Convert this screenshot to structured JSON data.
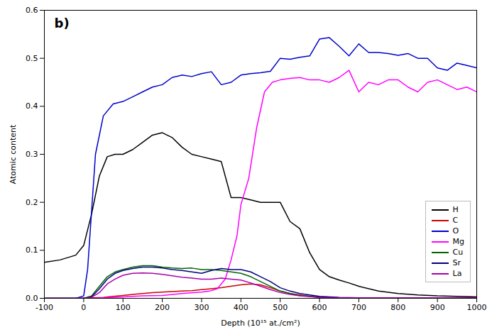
{
  "chart_data": {
    "type": "line",
    "title": "b)",
    "xlabel": "Depth (10¹⁵ at./cm²)",
    "ylabel": "Atomic content",
    "xlim": [
      -100,
      1000
    ],
    "ylim": [
      0,
      0.6
    ],
    "xticks": [
      -100,
      0,
      100,
      200,
      300,
      400,
      500,
      600,
      700,
      800,
      900,
      1000
    ],
    "yticks": [
      {
        "value": 0.0,
        "label": "0.0"
      },
      0.1,
      0.2,
      0.3,
      0.4,
      0.5,
      0.6
    ],
    "grid": false,
    "legend": "lower right",
    "series": [
      {
        "name": "H",
        "color": "#000000",
        "x": [
          -100,
          -60,
          -20,
          0,
          20,
          40,
          60,
          80,
          100,
          125,
          150,
          175,
          200,
          225,
          250,
          275,
          300,
          325,
          350,
          375,
          400,
          425,
          450,
          475,
          500,
          525,
          550,
          575,
          600,
          625,
          650,
          675,
          700,
          750,
          800,
          850,
          900,
          950,
          1000
        ],
        "values": [
          0.075,
          0.08,
          0.09,
          0.11,
          0.175,
          0.255,
          0.295,
          0.3,
          0.3,
          0.31,
          0.325,
          0.34,
          0.345,
          0.335,
          0.315,
          0.3,
          0.295,
          0.29,
          0.285,
          0.21,
          0.21,
          0.205,
          0.2,
          0.2,
          0.2,
          0.16,
          0.145,
          0.095,
          0.06,
          0.045,
          0.038,
          0.032,
          0.025,
          0.015,
          0.01,
          0.007,
          0.005,
          0.004,
          0.003
        ]
      },
      {
        "name": "C",
        "color": "#cc0000",
        "x": [
          -100,
          -50,
          0,
          25,
          50,
          75,
          100,
          125,
          150,
          175,
          200,
          225,
          250,
          275,
          300,
          325,
          350,
          375,
          400,
          425,
          450,
          475,
          500,
          525,
          550,
          575,
          600,
          650,
          700,
          750,
          800,
          900,
          1000
        ],
        "values": [
          0.0,
          0.0,
          0.0,
          0.001,
          0.002,
          0.004,
          0.006,
          0.008,
          0.01,
          0.012,
          0.013,
          0.014,
          0.015,
          0.016,
          0.018,
          0.02,
          0.022,
          0.025,
          0.028,
          0.03,
          0.028,
          0.022,
          0.015,
          0.01,
          0.007,
          0.004,
          0.002,
          0.001,
          0.001,
          0.001,
          0.001,
          0.001,
          0.001
        ]
      },
      {
        "name": "O",
        "color": "#0000cc",
        "x": [
          -100,
          -50,
          -20,
          0,
          10,
          20,
          30,
          50,
          75,
          100,
          125,
          150,
          175,
          200,
          225,
          250,
          275,
          300,
          325,
          350,
          375,
          400,
          425,
          450,
          475,
          500,
          525,
          550,
          575,
          600,
          625,
          650,
          675,
          700,
          725,
          750,
          775,
          800,
          825,
          850,
          875,
          900,
          925,
          950,
          975,
          1000
        ],
        "values": [
          0.0,
          0.0,
          0.0,
          0.005,
          0.06,
          0.18,
          0.3,
          0.38,
          0.405,
          0.41,
          0.42,
          0.43,
          0.44,
          0.445,
          0.46,
          0.465,
          0.462,
          0.468,
          0.472,
          0.445,
          0.45,
          0.465,
          0.468,
          0.47,
          0.473,
          0.5,
          0.498,
          0.502,
          0.505,
          0.54,
          0.543,
          0.525,
          0.505,
          0.53,
          0.512,
          0.512,
          0.51,
          0.506,
          0.51,
          0.5,
          0.5,
          0.48,
          0.475,
          0.49,
          0.485,
          0.48
        ]
      },
      {
        "name": "Mg",
        "color": "#ff00ff",
        "x": [
          -100,
          -50,
          0,
          25,
          50,
          75,
          100,
          150,
          200,
          250,
          280,
          300,
          320,
          340,
          360,
          375,
          390,
          400,
          420,
          440,
          460,
          480,
          500,
          525,
          550,
          575,
          600,
          625,
          650,
          675,
          700,
          725,
          750,
          775,
          800,
          825,
          850,
          875,
          900,
          925,
          950,
          975,
          1000
        ],
        "values": [
          0.0,
          0.0,
          0.0,
          0.0,
          0.001,
          0.002,
          0.003,
          0.005,
          0.006,
          0.01,
          0.012,
          0.013,
          0.015,
          0.02,
          0.04,
          0.08,
          0.13,
          0.195,
          0.25,
          0.355,
          0.43,
          0.45,
          0.455,
          0.458,
          0.46,
          0.455,
          0.455,
          0.45,
          0.46,
          0.475,
          0.43,
          0.45,
          0.445,
          0.455,
          0.455,
          0.44,
          0.43,
          0.45,
          0.455,
          0.445,
          0.435,
          0.44,
          0.43
        ]
      },
      {
        "name": "Cu",
        "color": "#006400",
        "x": [
          -100,
          -50,
          0,
          20,
          40,
          60,
          80,
          100,
          125,
          150,
          175,
          200,
          225,
          250,
          275,
          300,
          325,
          350,
          375,
          400,
          425,
          450,
          475,
          500,
          525,
          550,
          600,
          650,
          700,
          750,
          800,
          900,
          1000
        ],
        "values": [
          0.0,
          0.0,
          0.0,
          0.005,
          0.025,
          0.045,
          0.055,
          0.06,
          0.065,
          0.068,
          0.068,
          0.065,
          0.063,
          0.062,
          0.063,
          0.06,
          0.06,
          0.058,
          0.055,
          0.052,
          0.045,
          0.035,
          0.025,
          0.015,
          0.01,
          0.006,
          0.003,
          0.001,
          0.001,
          0.001,
          0.001,
          0.001,
          0.001
        ]
      },
      {
        "name": "Sr",
        "color": "#000080",
        "x": [
          -100,
          -50,
          0,
          20,
          40,
          60,
          80,
          100,
          125,
          150,
          175,
          200,
          225,
          250,
          275,
          300,
          325,
          350,
          375,
          400,
          425,
          450,
          475,
          500,
          525,
          550,
          600,
          650,
          700,
          750,
          800,
          900,
          1000
        ],
        "values": [
          0.0,
          0.0,
          0.0,
          0.003,
          0.02,
          0.04,
          0.052,
          0.058,
          0.062,
          0.065,
          0.065,
          0.063,
          0.06,
          0.058,
          0.055,
          0.052,
          0.058,
          0.062,
          0.06,
          0.06,
          0.055,
          0.045,
          0.035,
          0.022,
          0.015,
          0.01,
          0.004,
          0.002,
          0.001,
          0.001,
          0.001,
          0.001,
          0.001
        ]
      },
      {
        "name": "La",
        "color": "#aa00aa",
        "x": [
          -100,
          -50,
          0,
          20,
          40,
          60,
          80,
          100,
          125,
          150,
          175,
          200,
          225,
          250,
          275,
          300,
          325,
          350,
          375,
          400,
          425,
          450,
          475,
          500,
          525,
          550,
          600,
          650,
          700,
          750,
          800,
          900,
          1000
        ],
        "values": [
          0.0,
          0.0,
          0.0,
          0.002,
          0.012,
          0.03,
          0.04,
          0.048,
          0.052,
          0.053,
          0.052,
          0.05,
          0.047,
          0.044,
          0.042,
          0.04,
          0.04,
          0.042,
          0.04,
          0.038,
          0.032,
          0.025,
          0.018,
          0.012,
          0.008,
          0.005,
          0.002,
          0.001,
          0.001,
          0.001,
          0.001,
          0.001,
          0.001
        ]
      }
    ]
  }
}
